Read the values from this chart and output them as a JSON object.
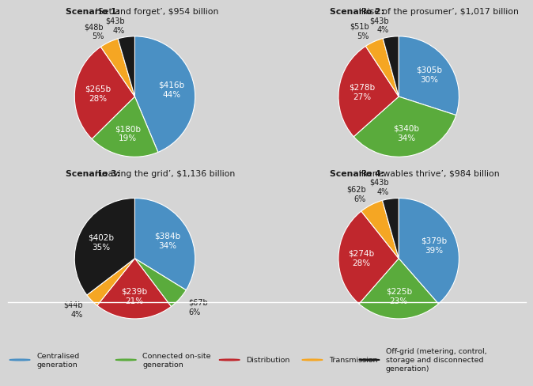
{
  "bg": "#d5d5d5",
  "scenarios": [
    {
      "title_bold": "Scenario 1:",
      "title_rest": " ‘Set and forget’, $954 billion",
      "values": [
        416,
        180,
        265,
        48,
        43
      ],
      "labels": [
        "$416b\n44%",
        "$180b\n19%",
        "$265b\n28%",
        "$48b\n5%",
        "$43b\n4%"
      ],
      "pcts": [
        44,
        19,
        28,
        5,
        4
      ]
    },
    {
      "title_bold": "Scenario 2:",
      "title_rest": " ‘Rise of the prosumer’, $1,017 billion",
      "values": [
        305,
        340,
        278,
        51,
        43
      ],
      "labels": [
        "$305b\n30%",
        "$340b\n34%",
        "$278b\n27%",
        "$51b\n5%",
        "$43b\n4%"
      ],
      "pcts": [
        30,
        34,
        27,
        5,
        4
      ]
    },
    {
      "title_bold": "Scenario 3:",
      "title_rest": " ‘Leaving the grid’, $1,136 billion",
      "values": [
        384,
        67,
        239,
        44,
        402
      ],
      "labels": [
        "$384b\n34%",
        "$67b\n6%",
        "$239b\n21%",
        "$44b\n4%",
        "$402b\n35%"
      ],
      "pcts": [
        34,
        6,
        21,
        4,
        35
      ]
    },
    {
      "title_bold": "Scenario 4:",
      "title_rest": " ‘Renewables thrive’, $984 billion",
      "values": [
        379,
        225,
        274,
        62,
        43
      ],
      "labels": [
        "$379b\n39%",
        "$225b\n23%",
        "$274b\n28%",
        "$62b\n6%",
        "$43b\n4%"
      ],
      "pcts": [
        39,
        23,
        28,
        6,
        4
      ]
    }
  ],
  "colors": [
    "#4a90c4",
    "#5aab3c",
    "#c0272d",
    "#f5a623",
    "#1a1a1a"
  ],
  "legend": [
    {
      "label": "Centralised\ngeneration",
      "color": "#4a90c4"
    },
    {
      "label": "Connected on-site\ngeneration",
      "color": "#5aab3c"
    },
    {
      "label": "Distribution",
      "color": "#c0272d"
    },
    {
      "label": "Transmission",
      "color": "#f5a623"
    },
    {
      "label": "Off-grid (metering, control,\nstorage and disconnected\ngeneration)",
      "color": "#1a1a1a"
    }
  ],
  "title_fontsize": 7.8,
  "label_fontsize_in": 7.5,
  "label_fontsize_out": 7.0,
  "legend_fontsize": 6.8,
  "inside_threshold": 19
}
